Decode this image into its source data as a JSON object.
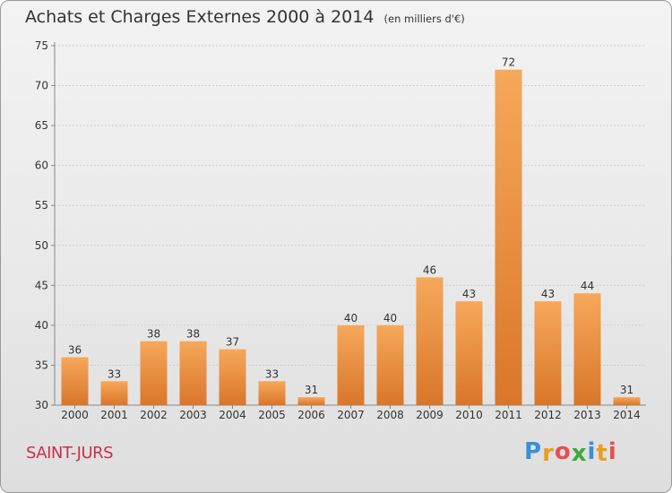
{
  "header": {
    "title": "Achats et Charges Externes 2000 à 2014",
    "subtitle": "(en milliers d'€)"
  },
  "footer": {
    "commune": "SAINT-JURS",
    "logo_letters": [
      "P",
      "r",
      "o",
      "x",
      "i",
      "t",
      "i"
    ],
    "logo_colors": [
      "#3a8fd8",
      "#e8a020",
      "#e55050",
      "#3aaa3a",
      "#3a8fd8",
      "#e8a020",
      "#e55050"
    ]
  },
  "colors": {
    "bar_light": "#f6a85a",
    "bar_dark": "#d9762a",
    "title": "#333333",
    "commune": "#c8304f"
  },
  "chart_data": {
    "type": "bar",
    "title": "Achats et Charges Externes 2000 à 2014",
    "subtitle": "(en milliers d'€)",
    "categories": [
      "2000",
      "2001",
      "2002",
      "2003",
      "2004",
      "2005",
      "2006",
      "2007",
      "2008",
      "2009",
      "2010",
      "2011",
      "2012",
      "2013",
      "2014"
    ],
    "values": [
      36,
      33,
      38,
      38,
      37,
      33,
      31,
      40,
      40,
      46,
      43,
      72,
      43,
      44,
      31
    ],
    "ylim": [
      30,
      75
    ],
    "yticks": [
      30,
      35,
      40,
      45,
      50,
      55,
      60,
      65,
      70,
      75
    ],
    "grid": true
  }
}
